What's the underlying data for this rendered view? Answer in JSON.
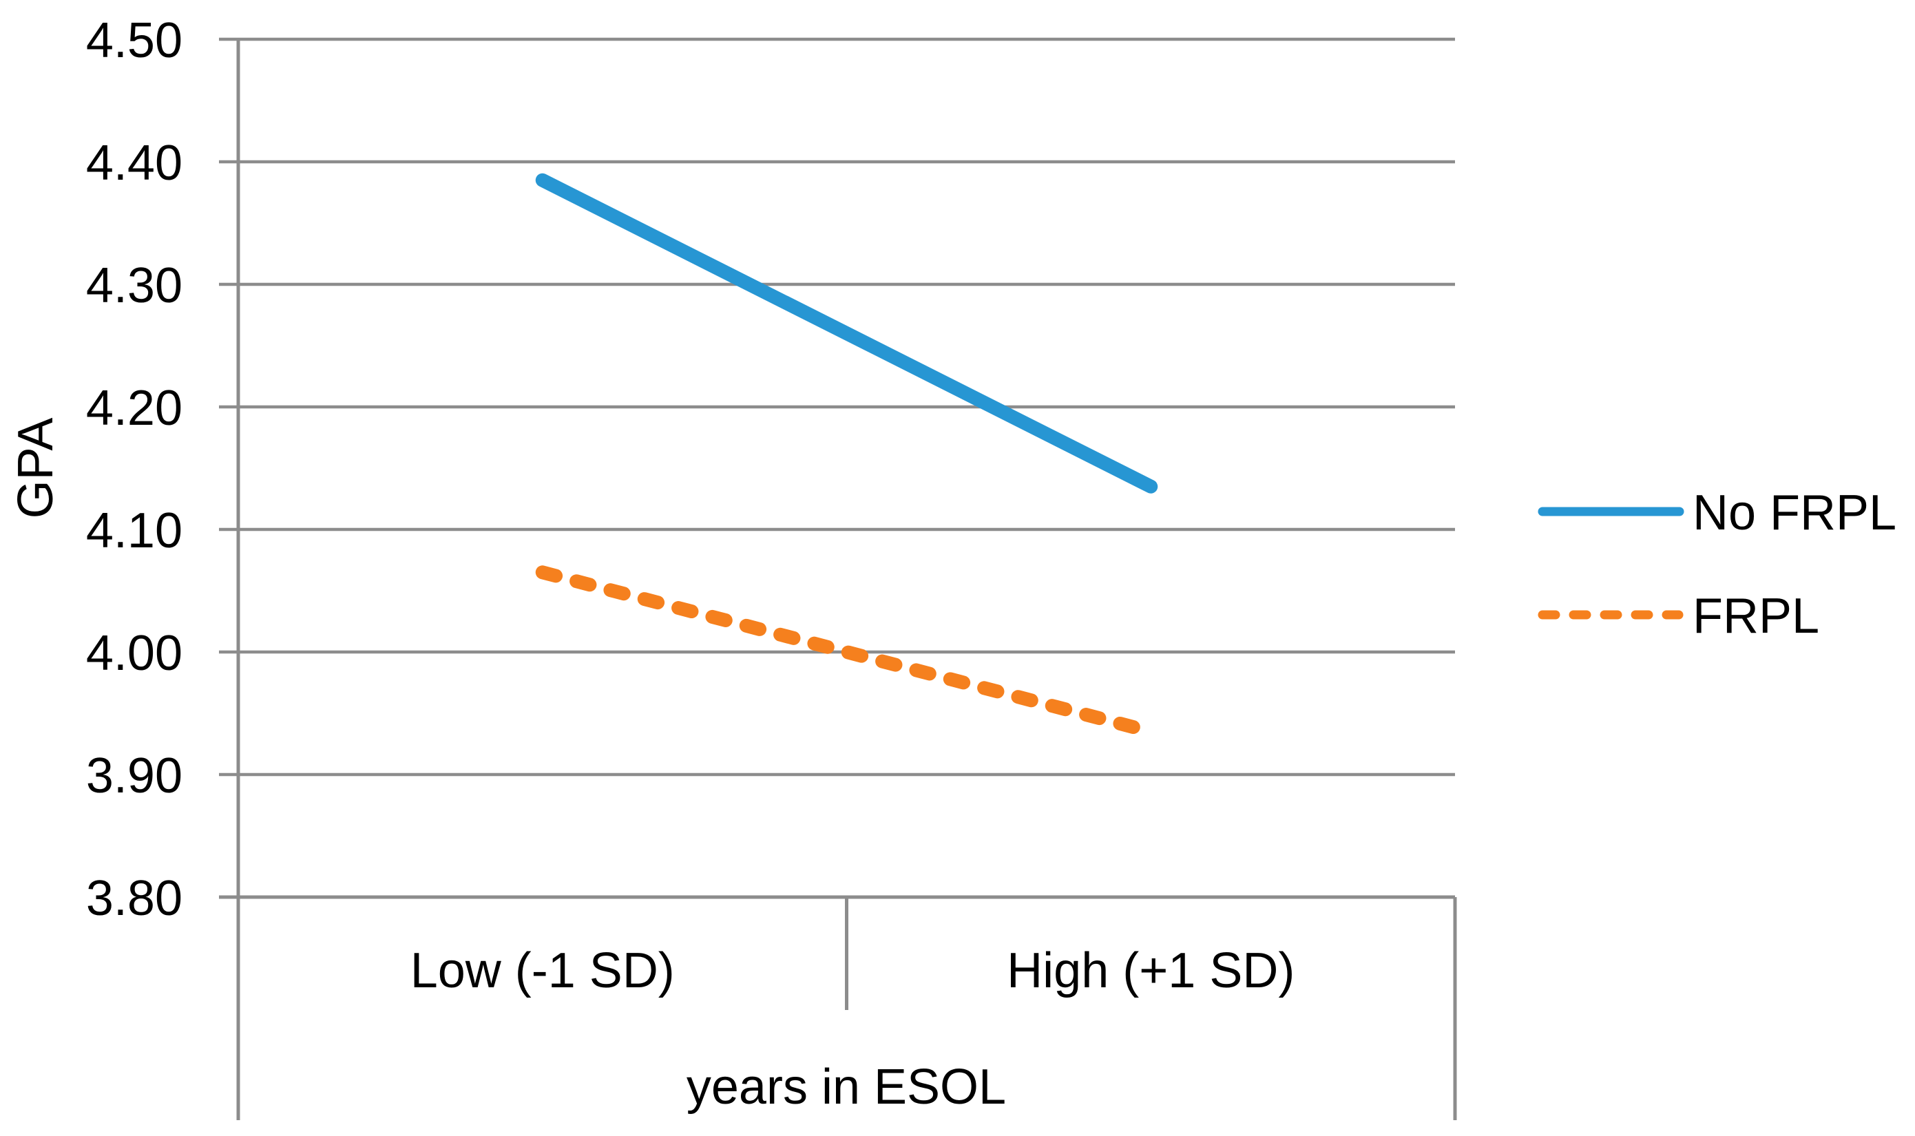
{
  "chart_data": {
    "type": "line",
    "title": "",
    "xlabel": "years in ESOL",
    "ylabel": "GPA",
    "categories": [
      "Low (-1 SD)",
      "High (+1 SD)"
    ],
    "series": [
      {
        "name": "No FRPL",
        "values": [
          4.385,
          4.135
        ],
        "color": "#2796D3",
        "style": "solid"
      },
      {
        "name": "FRPL",
        "values": [
          4.065,
          3.935
        ],
        "color": "#F5801E",
        "style": "dashed"
      }
    ],
    "ylim": [
      3.8,
      4.5
    ],
    "ytick_step": 0.1,
    "ytick_labels": [
      "4.50",
      "4.40",
      "4.30",
      "4.20",
      "4.10",
      "4.00",
      "3.90",
      "3.80"
    ],
    "grid": true,
    "legend_position": "right",
    "gridline_color": "#8C8C8C",
    "axis_color": "#8C8C8C",
    "text_color": "#000000"
  }
}
